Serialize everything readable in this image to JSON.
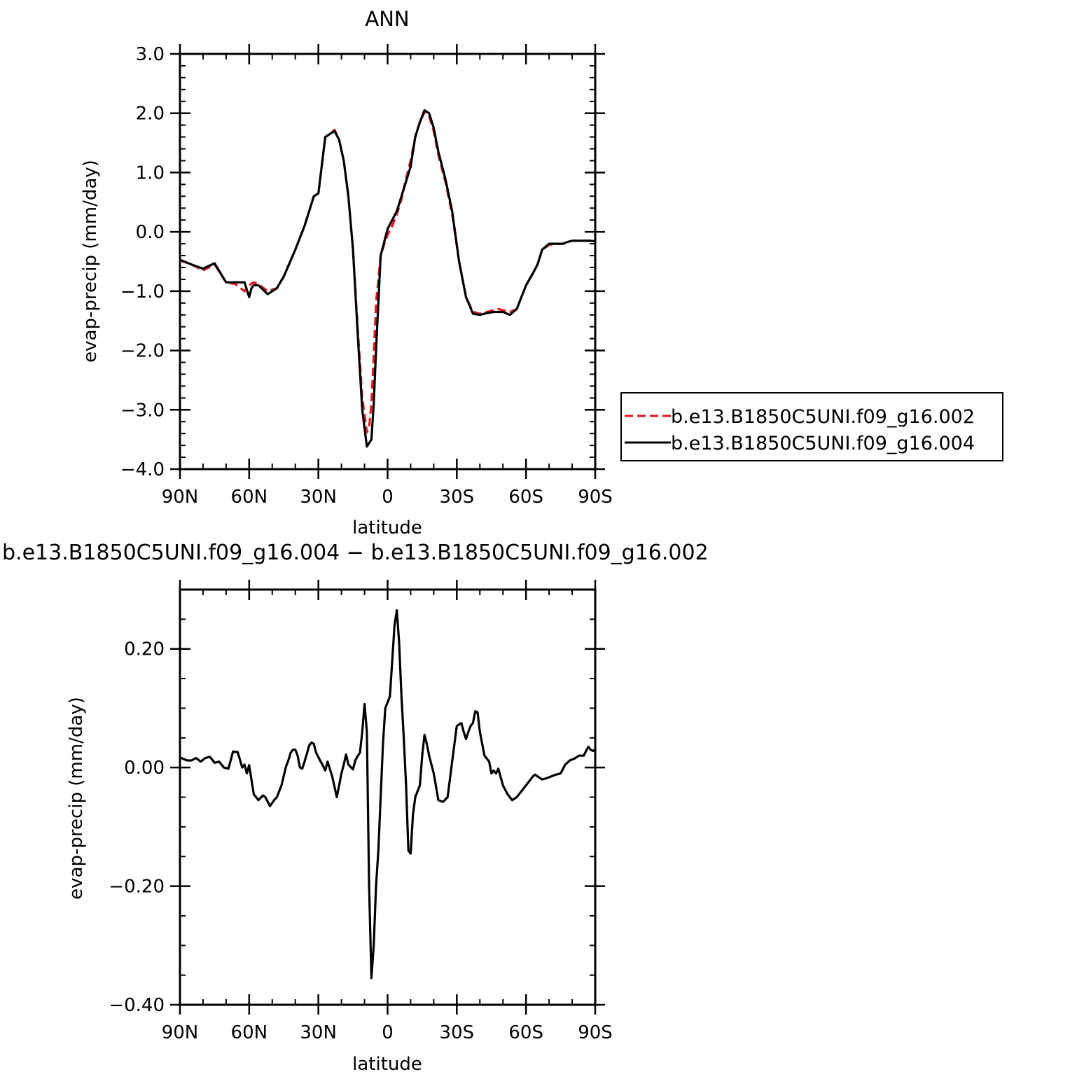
{
  "chart_data": [
    {
      "type": "line",
      "title": "ANN",
      "xlabel": "latitude",
      "ylabel": "evap-precip (mm/day)",
      "xlim": [
        90,
        -90
      ],
      "ylim": [
        -4.0,
        3.0
      ],
      "xticks": [
        90,
        60,
        30,
        0,
        -30,
        -60,
        -90
      ],
      "xtick_labels": [
        "90N",
        "60N",
        "30N",
        "0",
        "30S",
        "60S",
        "90S"
      ],
      "yticks": [
        3.0,
        2.0,
        1.0,
        0.0,
        -1.0,
        -2.0,
        -3.0,
        -4.0
      ],
      "ytick_labels": [
        "3.0",
        "2.0",
        "1.0",
        "0.0",
        "−1.0",
        "−2.0",
        "−3.0",
        "−4.0"
      ],
      "legend": {
        "position": "right",
        "entries": [
          "b.e13.B1850C5UNI.f09_g16.002",
          "b.e13.B1850C5UNI.f09_g16.004"
        ]
      },
      "series": [
        {
          "name": "b.e13.B1850C5UNI.f09_g16.002",
          "color": "#e8141e",
          "dash": "dashed",
          "x": [
            90,
            85,
            80,
            75,
            70,
            66,
            62,
            60,
            58,
            56,
            52,
            48,
            45,
            40,
            36,
            32,
            30,
            27,
            25,
            23,
            21,
            19,
            17,
            15,
            13,
            11,
            9,
            8,
            7,
            6,
            5,
            3,
            1,
            0,
            -2,
            -4,
            -6,
            -8,
            -10,
            -12,
            -14,
            -16,
            -18,
            -20,
            -22,
            -25,
            -28,
            -31,
            -34,
            -37,
            -40,
            -43,
            -46,
            -48,
            -50,
            -53,
            -56,
            -60,
            -63,
            -65,
            -67,
            -70,
            -73,
            -76,
            -78,
            -80,
            -82,
            -85,
            -88,
            -90
          ],
          "y": [
            -0.48,
            -0.55,
            -0.65,
            -0.55,
            -0.85,
            -0.88,
            -1.0,
            -0.9,
            -0.85,
            -0.88,
            -1.0,
            -0.95,
            -0.75,
            -0.3,
            0.1,
            0.6,
            0.65,
            1.6,
            1.65,
            1.72,
            1.55,
            1.2,
            0.6,
            -0.3,
            -1.6,
            -2.8,
            -3.38,
            -3.3,
            -2.9,
            -2.1,
            -1.2,
            -0.4,
            -0.15,
            -0.05,
            0.1,
            0.3,
            0.55,
            0.9,
            1.2,
            1.6,
            1.85,
            2.02,
            1.95,
            1.7,
            1.3,
            0.85,
            0.3,
            -0.5,
            -1.1,
            -1.35,
            -1.38,
            -1.35,
            -1.32,
            -1.3,
            -1.32,
            -1.35,
            -1.3,
            -0.9,
            -0.7,
            -0.55,
            -0.3,
            -0.22,
            -0.2,
            -0.2,
            -0.17,
            -0.15,
            -0.15,
            -0.15,
            -0.15,
            -0.16
          ]
        },
        {
          "name": "b.e13.B1850C5UNI.f09_g16.004",
          "color": "#000000",
          "dash": "solid",
          "x": [
            90,
            85,
            80,
            75,
            70,
            66,
            62,
            60,
            59,
            58,
            56,
            52,
            48,
            45,
            40,
            36,
            32,
            30,
            27,
            25,
            23,
            21,
            19,
            17,
            15,
            13,
            11,
            9,
            7,
            6,
            5,
            3,
            1,
            0,
            -2,
            -4,
            -6,
            -8,
            -10,
            -12,
            -14,
            -16,
            -18,
            -20,
            -22,
            -25,
            -28,
            -31,
            -34,
            -37,
            -40,
            -43,
            -46,
            -48,
            -50,
            -53,
            -56,
            -60,
            -63,
            -65,
            -67,
            -70,
            -73,
            -76,
            -78,
            -80,
            -82,
            -85,
            -88,
            -90
          ],
          "y": [
            -0.47,
            -0.55,
            -0.62,
            -0.53,
            -0.85,
            -0.85,
            -0.85,
            -1.1,
            -0.95,
            -0.9,
            -0.9,
            -1.05,
            -0.95,
            -0.75,
            -0.3,
            0.1,
            0.6,
            0.65,
            1.6,
            1.65,
            1.7,
            1.55,
            1.2,
            0.6,
            -0.3,
            -1.7,
            -3.0,
            -3.62,
            -3.5,
            -2.9,
            -2.0,
            -0.4,
            -0.1,
            0.05,
            0.2,
            0.35,
            0.6,
            0.85,
            1.1,
            1.6,
            1.85,
            2.05,
            2.0,
            1.75,
            1.35,
            0.9,
            0.35,
            -0.5,
            -1.1,
            -1.38,
            -1.4,
            -1.37,
            -1.35,
            -1.35,
            -1.35,
            -1.4,
            -1.3,
            -0.9,
            -0.7,
            -0.55,
            -0.3,
            -0.2,
            -0.2,
            -0.2,
            -0.17,
            -0.15,
            -0.15,
            -0.15,
            -0.15,
            -0.16
          ]
        }
      ]
    },
    {
      "type": "line",
      "title": "b.e13.B1850C5UNI.f09_g16.004 − b.e13.B1850C5UNI.f09_g16.002",
      "xlabel": "latitude",
      "ylabel": "evap-precip (mm/day)",
      "xlim": [
        90,
        -90
      ],
      "ylim": [
        -0.4,
        0.3
      ],
      "xticks": [
        90,
        60,
        30,
        0,
        -30,
        -60,
        -90
      ],
      "xtick_labels": [
        "90N",
        "60N",
        "30N",
        "0",
        "30S",
        "60S",
        "90S"
      ],
      "yticks": [
        0.2,
        0.0,
        -0.2,
        -0.4
      ],
      "ytick_labels": [
        "0.20",
        "0.00",
        "−0.20",
        "−0.40"
      ],
      "series": [
        {
          "color": "#000000",
          "dash": "solid",
          "x": [
            90,
            87,
            85,
            83,
            81,
            79,
            77,
            75,
            73,
            71,
            69,
            67,
            65,
            63,
            62,
            61,
            60,
            58,
            56,
            54,
            53,
            51,
            49,
            48,
            46,
            44,
            43,
            42,
            41,
            40,
            39,
            38,
            37,
            36,
            35,
            34,
            33,
            32,
            31,
            29,
            28,
            27,
            26,
            24,
            22,
            20,
            19,
            18,
            17,
            15,
            14,
            13,
            12,
            11,
            10,
            9,
            8,
            7,
            6,
            5,
            4,
            3,
            2,
            1,
            0,
            -1,
            -2,
            -3,
            -4,
            -5,
            -6,
            -7,
            -8,
            -9,
            -10,
            -11,
            -12,
            -13,
            -14,
            -15,
            -16,
            -17,
            -18,
            -20,
            -22,
            -24,
            -26,
            -28,
            -30,
            -32,
            -33,
            -34,
            -35,
            -36,
            -37,
            -38,
            -39,
            -40,
            -42,
            -44,
            -45,
            -46,
            -47,
            -48,
            -50,
            -52,
            -54,
            -56,
            -58,
            -59,
            -60,
            -61,
            -62,
            -63,
            -64,
            -65,
            -67,
            -69,
            -71,
            -73,
            -75,
            -77,
            -79,
            -81,
            -83,
            -85,
            -87,
            -88,
            -89,
            -90
          ],
          "y": [
            0.017,
            0.012,
            0.012,
            0.016,
            0.01,
            0.016,
            0.018,
            0.008,
            0.01,
            0.0,
            -0.002,
            0.027,
            0.026,
            0.0,
            0.005,
            -0.01,
            0.004,
            -0.045,
            -0.055,
            -0.047,
            -0.05,
            -0.065,
            -0.054,
            -0.05,
            -0.03,
            0.002,
            0.012,
            0.025,
            0.03,
            0.03,
            0.02,
            0.0,
            -0.002,
            0.01,
            0.023,
            0.037,
            0.042,
            0.04,
            0.025,
            0.01,
            0.003,
            -0.005,
            0.01,
            -0.015,
            -0.05,
            -0.01,
            0.005,
            0.022,
            0.005,
            -0.003,
            0.012,
            0.019,
            0.025,
            0.06,
            0.107,
            0.06,
            -0.2,
            -0.355,
            -0.3,
            -0.2,
            -0.14,
            -0.05,
            0.04,
            0.1,
            0.11,
            0.12,
            0.18,
            0.24,
            0.265,
            0.21,
            0.12,
            0.05,
            -0.03,
            -0.14,
            -0.145,
            -0.08,
            -0.05,
            -0.04,
            -0.03,
            0.02,
            0.055,
            0.04,
            0.02,
            -0.01,
            -0.055,
            -0.058,
            -0.05,
            0.01,
            0.07,
            0.075,
            0.06,
            0.048,
            0.06,
            0.07,
            0.075,
            0.095,
            0.093,
            0.06,
            0.02,
            0.01,
            -0.01,
            -0.005,
            -0.01,
            -0.002,
            -0.03,
            -0.045,
            -0.055,
            -0.05,
            -0.04,
            -0.035,
            -0.03,
            -0.025,
            -0.02,
            -0.015,
            -0.012,
            -0.015,
            -0.02,
            -0.018,
            -0.015,
            -0.012,
            -0.01,
            0.005,
            0.012,
            0.015,
            0.02,
            0.02,
            0.035,
            0.03,
            0.028,
            0.03
          ]
        }
      ]
    }
  ]
}
